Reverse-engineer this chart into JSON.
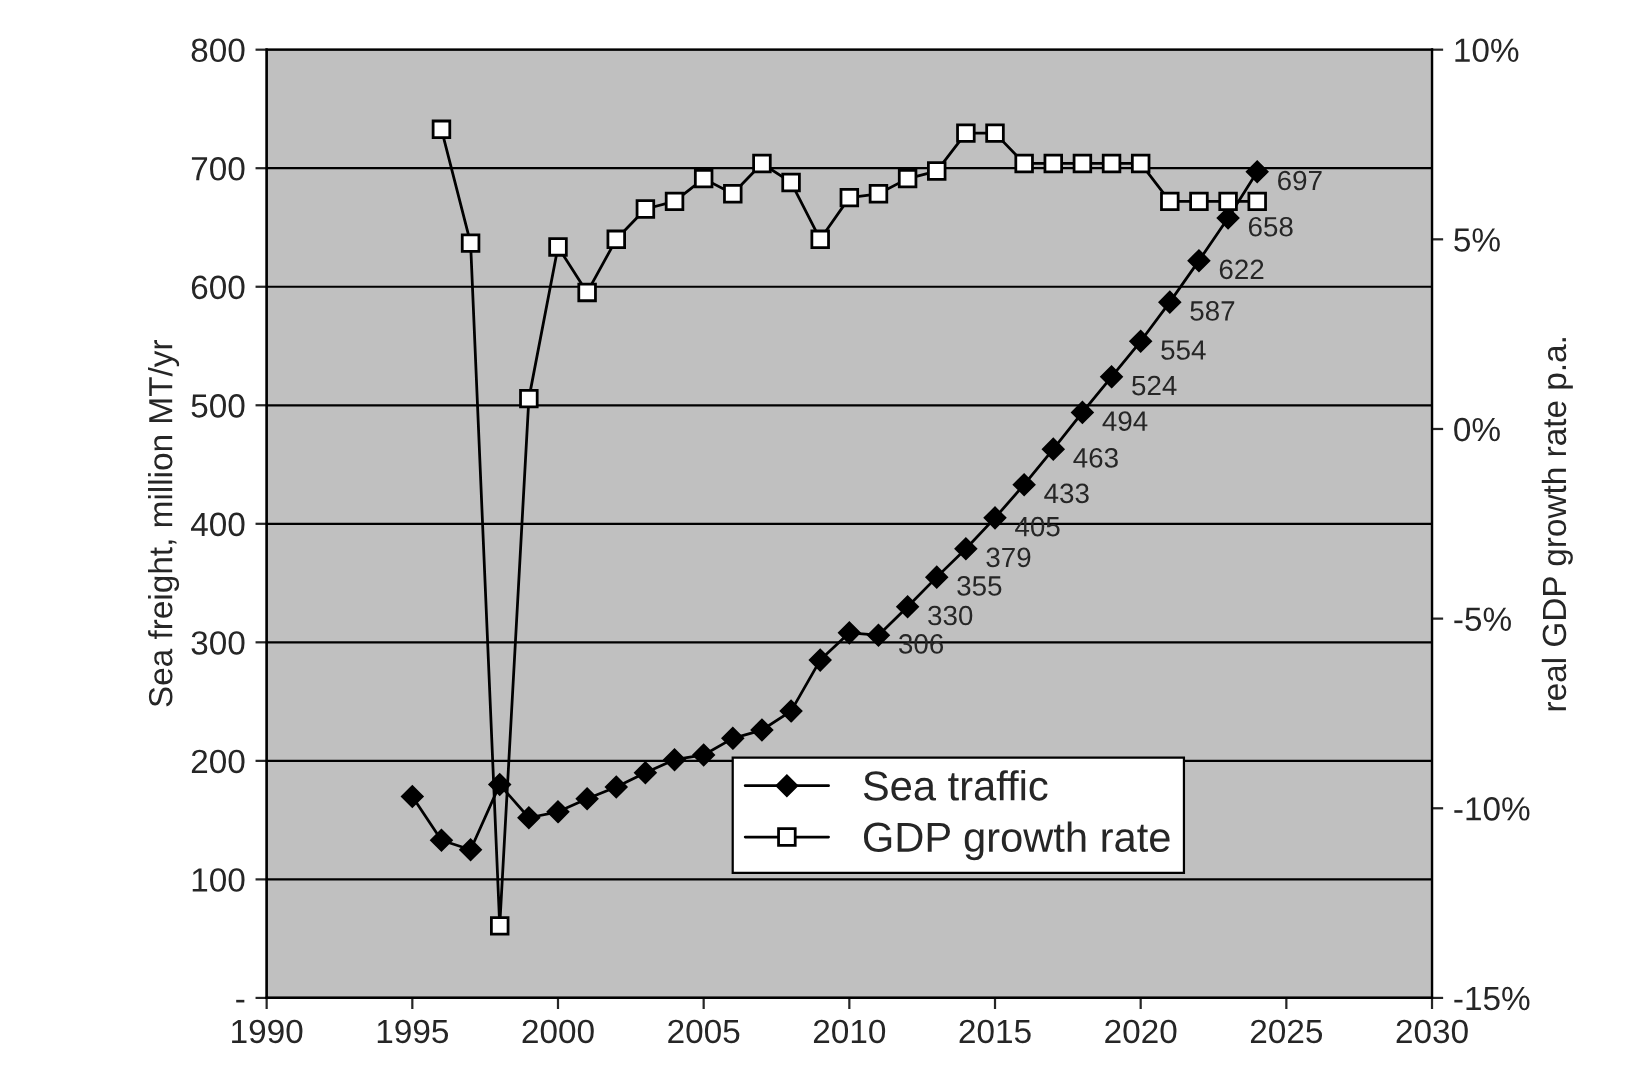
{
  "chart_data": {
    "type": "line",
    "ylabel": "Sea freight, million MT/yr",
    "y2label": "real GDP growth rate p.a.",
    "xlim": [
      1990,
      2030
    ],
    "xticks": [
      1990,
      1995,
      2000,
      2005,
      2010,
      2015,
      2020,
      2025,
      2030
    ],
    "ylim": [
      0,
      800
    ],
    "yticks": [
      {
        "value": 0,
        "label": "-"
      },
      100,
      200,
      300,
      400,
      500,
      600,
      700,
      800
    ],
    "y2lim": [
      -15,
      10
    ],
    "y2ticks": [
      {
        "value": -15,
        "label": "-15%"
      },
      {
        "value": -10,
        "label": "-10%"
      },
      {
        "value": -5,
        "label": "-5%"
      },
      {
        "value": 0,
        "label": "0%"
      },
      {
        "value": 5,
        "label": "5%"
      },
      {
        "value": 10,
        "label": "10%"
      }
    ],
    "grid": "y",
    "legend": "bottom right",
    "series": [
      {
        "name": "Sea traffic",
        "color": "#000000",
        "marker": "diamond",
        "x": [
          1995,
          1996,
          1997,
          1998,
          1999,
          2000,
          2001,
          2002,
          2003,
          2004,
          2005,
          2006,
          2007,
          2008,
          2009,
          2010,
          2011,
          2012,
          2013,
          2014,
          2015,
          2016,
          2017,
          2018,
          2019,
          2020,
          2021,
          2022,
          2023,
          2024
        ],
        "values": [
          170,
          133,
          125,
          180,
          152,
          157,
          168,
          178,
          190,
          201,
          205,
          219,
          226,
          242,
          285,
          308,
          306,
          330,
          355,
          379,
          405,
          433,
          463,
          494,
          524,
          554,
          587,
          622,
          658,
          697
        ],
        "value_labels": [
          null,
          null,
          null,
          null,
          null,
          null,
          null,
          null,
          null,
          null,
          null,
          null,
          null,
          null,
          null,
          null,
          "306",
          "330",
          "355",
          "379",
          "405",
          "433",
          "463",
          "494",
          "524",
          "554",
          "587",
          "622",
          "658",
          "697"
        ]
      },
      {
        "name": "GDP growth rate",
        "color": "#000000",
        "marker": "square",
        "axis": "y2",
        "x": [
          1996,
          1997,
          1998,
          1999,
          2000,
          2001,
          2002,
          2003,
          2004,
          2005,
          2006,
          2007,
          2008,
          2009,
          2010,
          2011,
          2012,
          2013,
          2014,
          2015,
          2016,
          2017,
          2018,
          2019,
          2020,
          2021,
          2022,
          2023,
          2024
        ],
        "values": [
          7.9,
          4.9,
          -13.1,
          0.8,
          4.8,
          3.6,
          5.0,
          5.8,
          6.0,
          6.6,
          6.2,
          7.0,
          6.5,
          5.0,
          6.1,
          6.2,
          6.6,
          6.8,
          7.8,
          7.8,
          7.0,
          7.0,
          7.0,
          7.0,
          7.0,
          6.0,
          6.0,
          6.0,
          6.0
        ]
      }
    ]
  }
}
